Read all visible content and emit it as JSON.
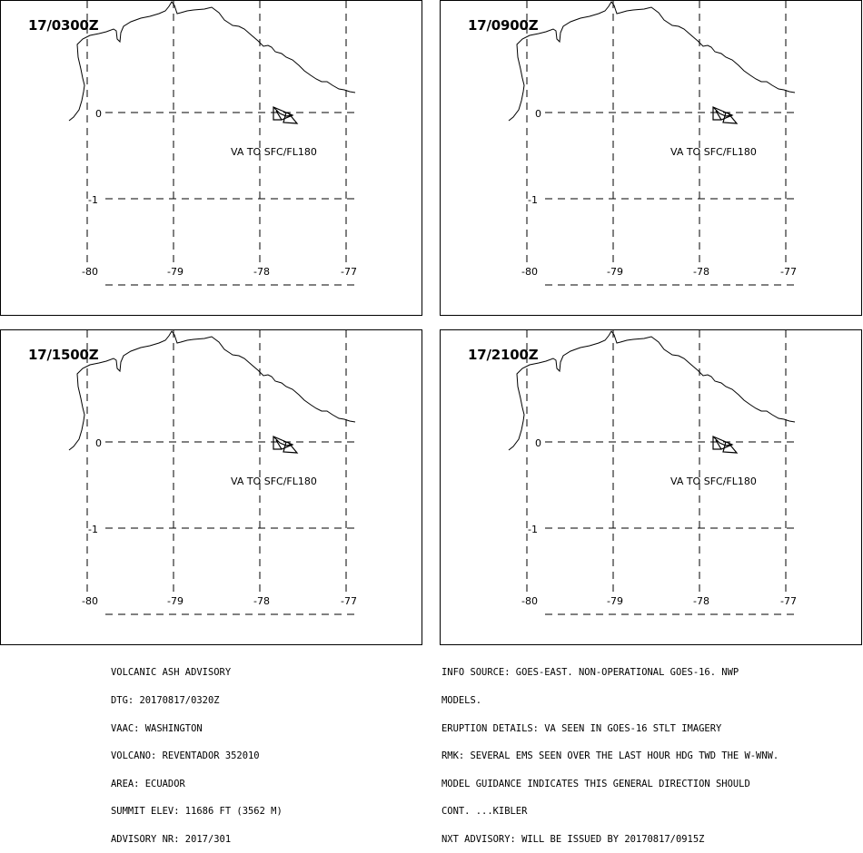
{
  "panels": [
    {
      "title": "17/0300Z",
      "va_label": "VA TO SFC/FL180"
    },
    {
      "title": "17/0900Z",
      "va_label": "VA TO SFC/FL180"
    },
    {
      "title": "17/1500Z",
      "va_label": "VA TO SFC/FL180"
    },
    {
      "title": "17/2100Z",
      "va_label": "VA TO SFC/FL180"
    }
  ],
  "map": {
    "lon_ticks": [
      "-80",
      "-79",
      "-78",
      "-77"
    ],
    "lat_ticks": [
      "0",
      "-1"
    ],
    "lines": [
      "coastline",
      "lat-lon grid (dashed)",
      "volcanic ash polygon"
    ]
  },
  "advisory_left": [
    "VOLCANIC ASH ADVISORY",
    "DTG: 20170817/0320Z",
    "VAAC: WASHINGTON",
    "VOLCANO: REVENTADOR 352010",
    "AREA: ECUADOR",
    "SUMMIT ELEV: 11686 FT (3562 M)",
    "ADVISORY NR: 2017/301"
  ],
  "advisory_right": [
    "INFO SOURCE: GOES-EAST. NON-OPERATIONAL GOES-16. NWP",
    "MODELS.",
    "ERUPTION DETAILS: VA SEEN IN GOES-16 STLT IMAGERY",
    "RMK: SEVERAL EMS SEEN OVER THE LAST HOUR HDG TWD THE W-WNW.",
    "MODEL GUIDANCE INDICATES THIS GENERAL DIRECTION SHOULD",
    "CONT. ...KIBLER",
    "NXT ADVISORY: WILL BE ISSUED BY 20170817/0915Z"
  ]
}
